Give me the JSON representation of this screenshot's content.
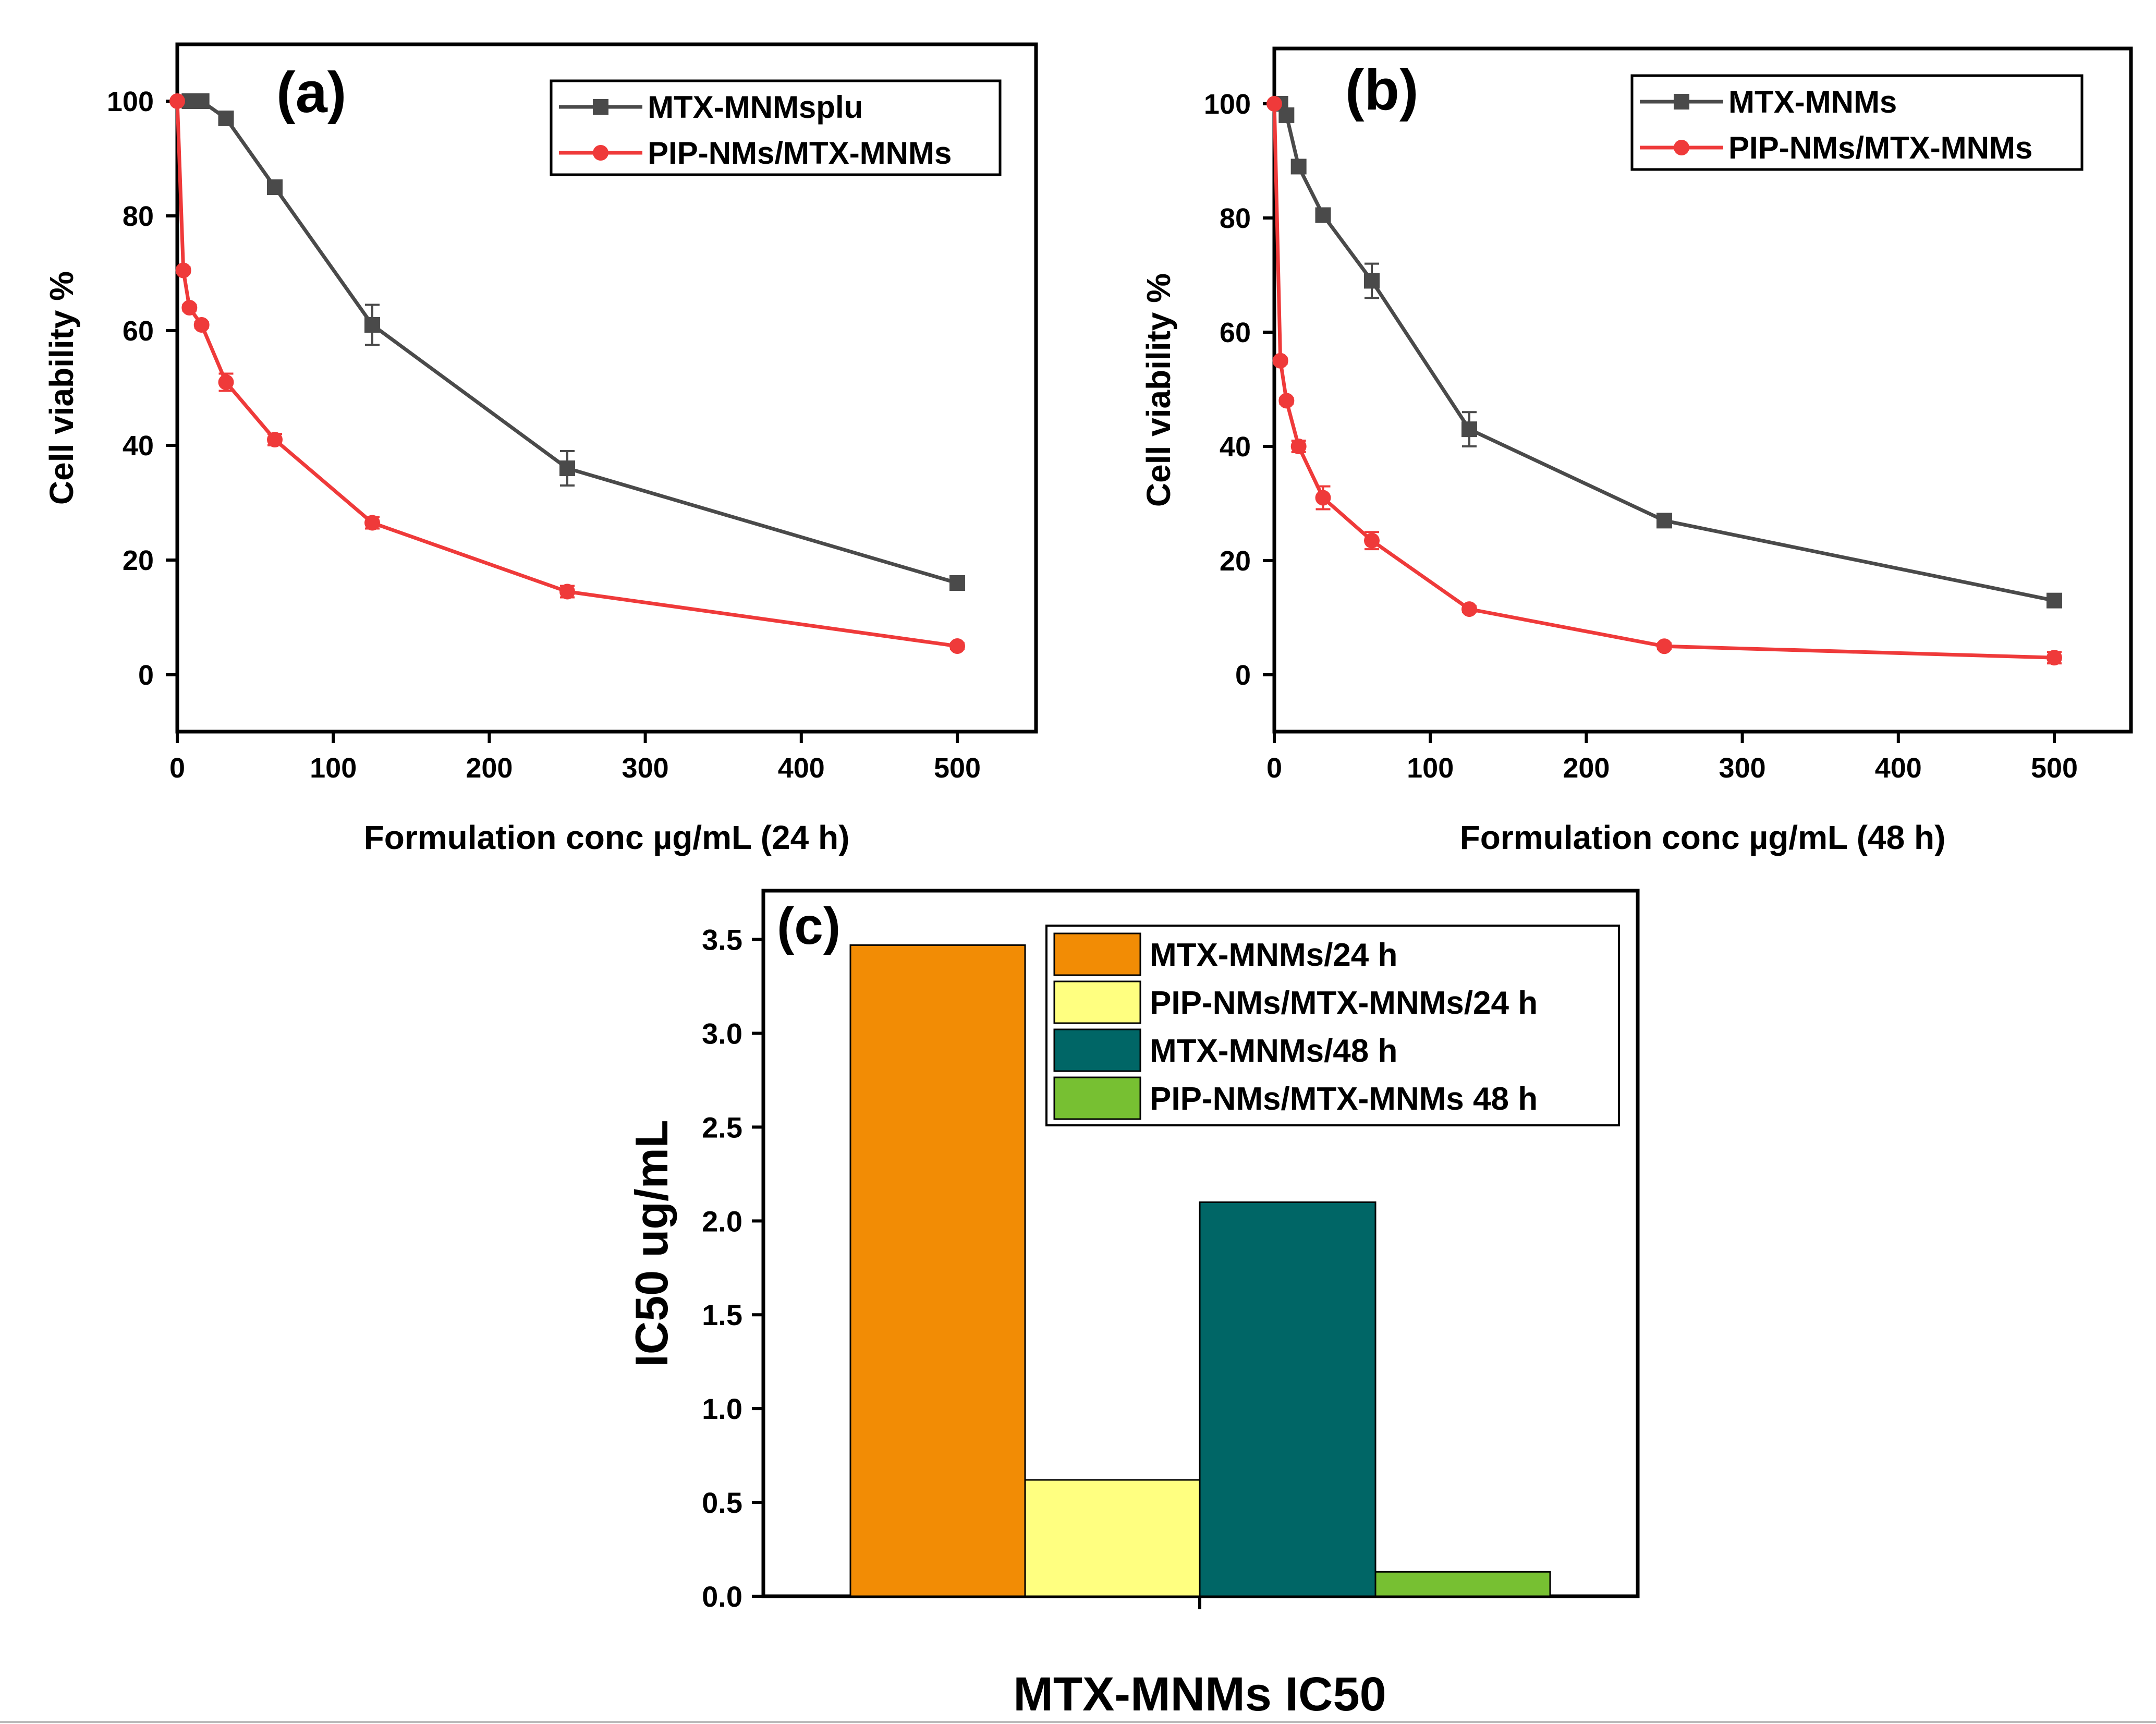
{
  "chart_data": [
    {
      "type": "line",
      "panel_label": "(a)",
      "xlabel": "Formulation conc µg/mL (24 h)",
      "ylabel": "Cell viability %",
      "xlim": [
        0,
        550
      ],
      "ylim": [
        -10,
        110
      ],
      "xticks": [
        0,
        100,
        200,
        300,
        400,
        500
      ],
      "yticks": [
        0,
        20,
        40,
        60,
        80,
        100
      ],
      "legend_position": "top-right",
      "series": [
        {
          "name": "MTX-MNMsplu",
          "color": "#4a4a4a",
          "marker": "square",
          "x": [
            7.8,
            15.6,
            31.25,
            62.5,
            125,
            250,
            500
          ],
          "y": [
            100,
            100,
            97,
            85,
            61,
            36,
            16
          ],
          "err": [
            0,
            0,
            1,
            1,
            3.5,
            3,
            1
          ]
        },
        {
          "name": "PIP-NMs/MTX-MNMs",
          "color": "#ef3a3a",
          "marker": "circle",
          "x": [
            0,
            3.9,
            7.8,
            15.6,
            31.25,
            62.5,
            125,
            250,
            500
          ],
          "y": [
            100,
            70.5,
            64,
            61,
            51,
            41,
            26.5,
            14.5,
            5
          ],
          "err": [
            0,
            0.5,
            0.5,
            0.5,
            1.5,
            1,
            1,
            1,
            0.5
          ]
        }
      ]
    },
    {
      "type": "line",
      "panel_label": "(b)",
      "xlabel": "Formulation conc µg/mL (48 h)",
      "ylabel": "Cell viability %",
      "xlim": [
        0,
        550
      ],
      "ylim": [
        -10,
        110
      ],
      "xticks": [
        0,
        100,
        200,
        300,
        400,
        500
      ],
      "yticks": [
        0,
        20,
        40,
        60,
        80,
        100
      ],
      "legend_position": "top-right",
      "series": [
        {
          "name": "MTX-MNMs",
          "color": "#4a4a4a",
          "marker": "square",
          "x": [
            3.9,
            7.8,
            15.6,
            31.25,
            62.5,
            125,
            250,
            500
          ],
          "y": [
            100,
            98,
            89,
            80.5,
            69,
            43,
            27,
            13
          ],
          "err": [
            0,
            0,
            0,
            0.5,
            3,
            3,
            1,
            0.5
          ]
        },
        {
          "name": "PIP-NMs/MTX-MNMs",
          "color": "#ef3a3a",
          "marker": "circle",
          "x": [
            0,
            3.9,
            7.8,
            15.6,
            31.25,
            62.5,
            125,
            250,
            500
          ],
          "y": [
            100,
            55,
            48,
            40,
            31,
            23.5,
            11.5,
            5,
            3
          ],
          "err": [
            0,
            0.5,
            0.5,
            1,
            2,
            1.5,
            0.5,
            0.5,
            1
          ]
        }
      ]
    },
    {
      "type": "bar",
      "panel_label": "(c)",
      "title": "MTX-MNMs IC50",
      "ylabel": "IC50 ug/mL",
      "ylim": [
        0,
        3.76
      ],
      "yticks": [
        "0.0",
        "0.5",
        "1.0",
        "1.5",
        "2.0",
        "2.5",
        "3.0",
        "3.5"
      ],
      "legend_position": "top-right",
      "series": [
        {
          "name": "MTX-MNMs/24 h",
          "value": 3.47,
          "color": "#f28c05"
        },
        {
          "name": "PIP-NMs/MTX-MNMs/24 h",
          "value": 0.62,
          "color": "#ffff80"
        },
        {
          "name": "MTX-MNMs/48 h",
          "value": 2.1,
          "color": "#006666"
        },
        {
          "name": "PIP-NMs/MTX-MNMs 48 h",
          "value": 0.13,
          "color": "#77c032"
        }
      ]
    }
  ]
}
